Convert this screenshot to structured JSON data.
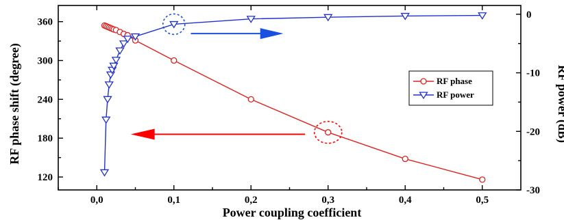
{
  "chart_data": {
    "type": "line",
    "xlabel": "Power coupling coefficient",
    "ylabel_left": "RF phase shift (degree)",
    "ylabel_right": "RF power (dB)",
    "xlim": [
      -0.05,
      0.55
    ],
    "ylim_left": [
      100,
      385
    ],
    "ylim_right": [
      -30,
      1.5
    ],
    "x_ticks": [
      0.0,
      0.1,
      0.2,
      0.3,
      0.4,
      0.5
    ],
    "x_tick_labels": [
      "0,0",
      "0,1",
      "0,2",
      "0,3",
      "0,4",
      "0,5"
    ],
    "y_ticks_left": [
      120,
      180,
      240,
      300,
      360
    ],
    "y_tick_labels_left": [
      "120",
      "180",
      "240",
      "300",
      "360"
    ],
    "y_ticks_right": [
      -30,
      -20,
      -10,
      0
    ],
    "y_tick_labels_right": [
      "-30",
      "-20",
      "-10",
      "0"
    ],
    "grid": false,
    "legend_position": "right",
    "series": [
      {
        "name": "RF phase",
        "axis": "left",
        "color": "#e02020",
        "marker": "circle",
        "x": [
          0.01,
          0.012,
          0.014,
          0.016,
          0.018,
          0.02,
          0.022,
          0.025,
          0.03,
          0.035,
          0.04,
          0.05,
          0.1,
          0.2,
          0.3,
          0.4,
          0.5
        ],
        "y": [
          354,
          353,
          352,
          351,
          350,
          349,
          348,
          347,
          344,
          341,
          339,
          331,
          300,
          240,
          189,
          148,
          116
        ]
      },
      {
        "name": "RF power",
        "axis": "right",
        "color": "#2030d0",
        "marker": "triangle-down",
        "x": [
          0.01,
          0.012,
          0.014,
          0.016,
          0.018,
          0.02,
          0.022,
          0.025,
          0.03,
          0.035,
          0.04,
          0.05,
          0.1,
          0.2,
          0.3,
          0.4,
          0.5
        ],
        "y": [
          -27,
          -18,
          -14.5,
          -12,
          -10.3,
          -9.5,
          -8.8,
          -7.8,
          -6.2,
          -5.0,
          -4.2,
          -3.8,
          -1.7,
          -0.8,
          -0.5,
          -0.3,
          -0.2
        ]
      }
    ],
    "annotations": {
      "phase_arrow_color": "#ff0000",
      "power_arrow_color": "#1a4fe0"
    }
  }
}
